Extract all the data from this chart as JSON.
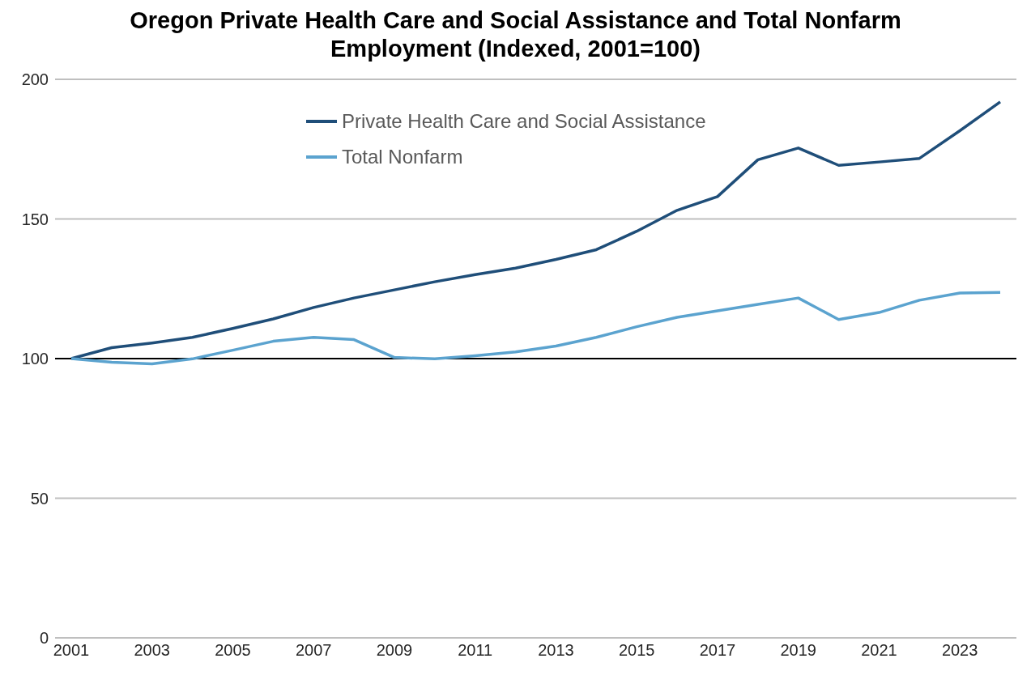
{
  "chart_data": {
    "type": "line",
    "title": "Oregon Private Health Care and Social Assistance and Total Nonfarm Employment (Indexed, 2001=100)",
    "categories": [
      "2001",
      null,
      "2003",
      null,
      "2005",
      null,
      "2007",
      null,
      "2009",
      null,
      "2011",
      null,
      "2013",
      null,
      "2015",
      null,
      "2017",
      null,
      "2019",
      null,
      "2021",
      null,
      "2023",
      null
    ],
    "series": [
      {
        "name": "Private Health Care and Social Assistance",
        "color": "#1f4e79",
        "values": [
          100,
          103.9,
          105.6,
          107.6,
          110.8,
          114.2,
          118.3,
          121.7,
          124.6,
          127.5,
          130.1,
          132.4,
          135.5,
          139,
          145.6,
          153.1,
          158,
          171.2,
          175.4,
          169.2,
          170.4,
          171.7,
          181.6,
          191.9
        ]
      },
      {
        "name": "Total Nonfarm",
        "color": "#5ba3cf",
        "values": [
          100,
          98.7,
          98.1,
          99.9,
          103,
          106.2,
          107.6,
          106.8,
          100.4,
          99.9,
          101,
          102.4,
          104.5,
          107.6,
          111.4,
          114.8,
          117.1,
          119.4,
          121.7,
          114,
          116.5,
          120.9,
          123.5,
          123.7
        ]
      }
    ],
    "ylim": [
      0,
      200
    ],
    "yticks": [
      0,
      50,
      100,
      150,
      200
    ],
    "grid": "y",
    "legend": "top",
    "marker": "none",
    "line_style": "solid",
    "ref_lines": [
      {
        "axis": "y",
        "value": 100,
        "color": "#000000"
      }
    ]
  }
}
